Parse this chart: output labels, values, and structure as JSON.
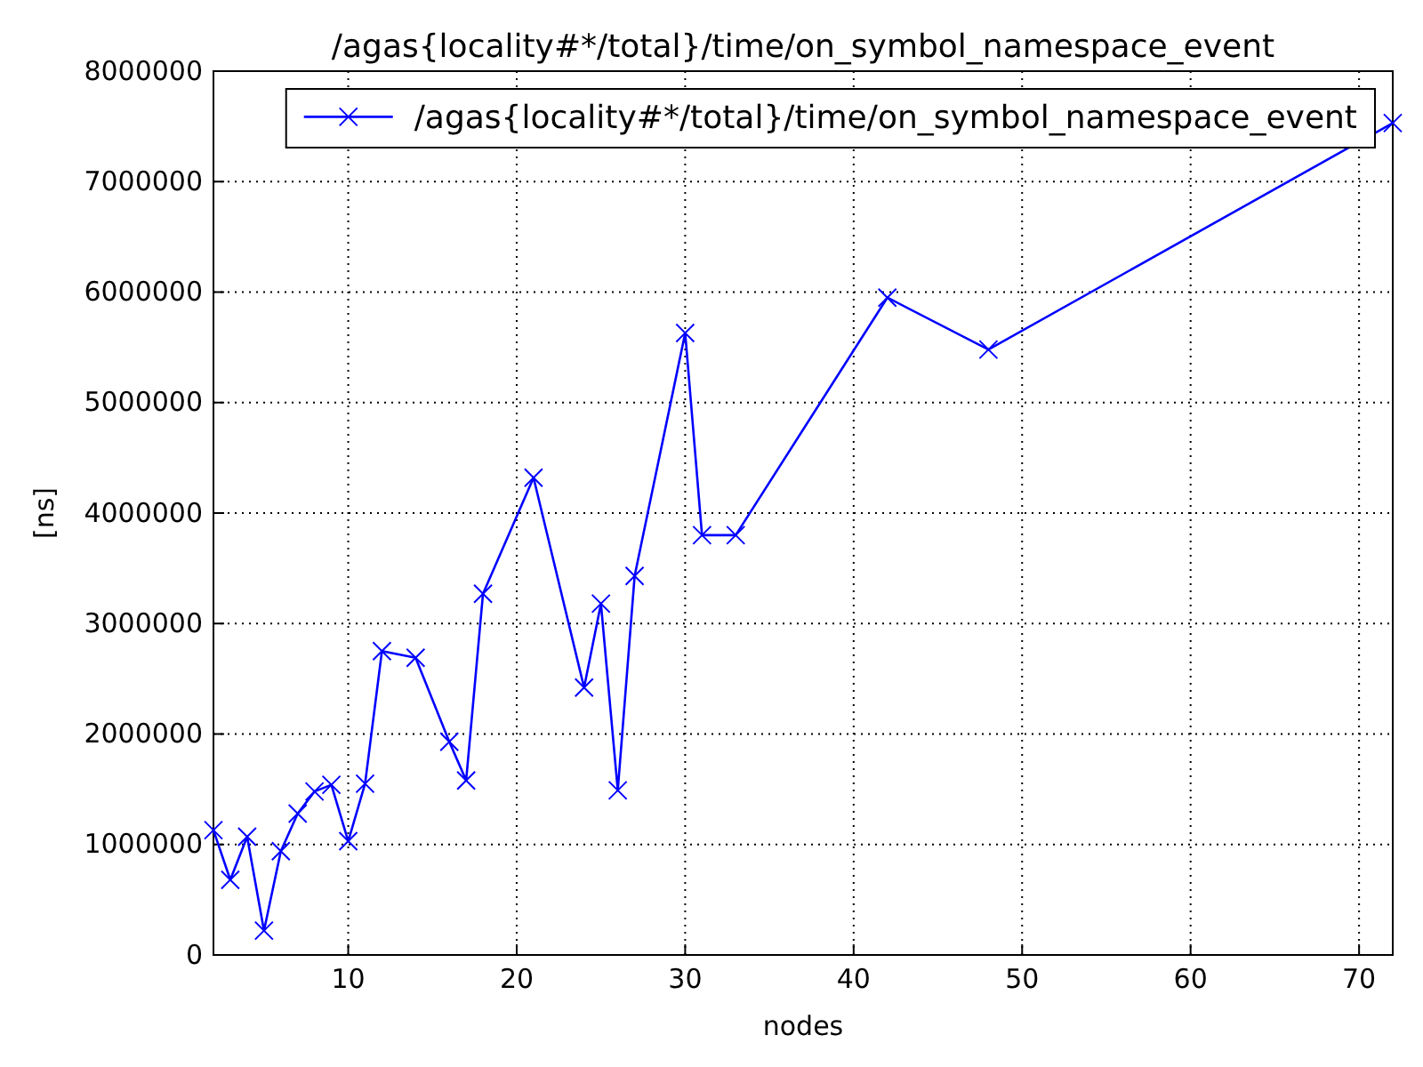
{
  "chart_data": {
    "type": "line",
    "title": "/agas{locality#*/total}/time/on_symbol_namespace_event",
    "xlabel": "nodes",
    "ylabel": "[ns]",
    "x": [
      2,
      3,
      4,
      5,
      6,
      7,
      8,
      9,
      10,
      11,
      12,
      14,
      16,
      17,
      18,
      21,
      24,
      25,
      26,
      27,
      30,
      31,
      33,
      42,
      48,
      72
    ],
    "series": [
      {
        "name": "/agas{locality#*/total}/time/on_symbol_namespace_event",
        "color": "#0000ff",
        "values": [
          1130000,
          680000,
          1070000,
          220000,
          940000,
          1280000,
          1480000,
          1540000,
          1030000,
          1550000,
          2750000,
          2690000,
          1930000,
          1580000,
          3270000,
          4320000,
          2420000,
          3180000,
          1490000,
          3430000,
          5630000,
          3800000,
          3800000,
          5950000,
          5480000,
          7530000
        ]
      }
    ],
    "xlim": [
      2,
      72
    ],
    "xticks": [
      10,
      20,
      30,
      40,
      50,
      60,
      70
    ],
    "ylim": [
      0,
      8000000
    ],
    "yticks": [
      0,
      1000000,
      2000000,
      3000000,
      4000000,
      5000000,
      6000000,
      7000000,
      8000000
    ],
    "grid": true,
    "legend": "top right",
    "marker": "cross",
    "line_style": "solid"
  }
}
